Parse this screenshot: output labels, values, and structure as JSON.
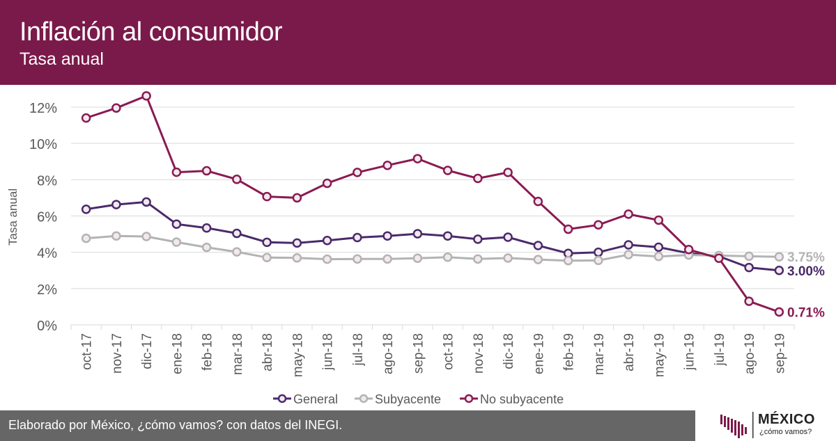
{
  "header": {
    "title": "Inflación al consumidor",
    "subtitle": "Tasa anual"
  },
  "footer": {
    "credit": "Elaborado por México, ¿cómo vamos? con datos del INEGI."
  },
  "logo": {
    "name": "MÉXICO",
    "tagline": "¿cómo vamos?"
  },
  "colors": {
    "header_bg": "#7a1a4a",
    "footer_bg": "#666666",
    "grid": "#d9d9d9",
    "axis_text": "#595959"
  },
  "chart_data": {
    "type": "line",
    "ylabel": "Tasa anual",
    "xlabel": "",
    "ylim": [
      0,
      12
    ],
    "yticks": [
      "0%",
      "2%",
      "4%",
      "6%",
      "8%",
      "10%",
      "12%"
    ],
    "grid": true,
    "legend_position": "bottom",
    "categories": [
      "oct-17",
      "nov-17",
      "dic-17",
      "ene-18",
      "feb-18",
      "mar-18",
      "abr-18",
      "may-18",
      "jun-18",
      "jul-18",
      "ago-18",
      "sep-18",
      "oct-18",
      "nov-18",
      "dic-18",
      "ene-19",
      "feb-19",
      "mar-19",
      "abr-19",
      "may-19",
      "jun-19",
      "jul-19",
      "ago-19",
      "sep-19"
    ],
    "series": [
      {
        "name": "General",
        "color": "#4a2a6a",
        "end_label": "3.00%",
        "values": [
          6.37,
          6.63,
          6.77,
          5.55,
          5.34,
          5.04,
          4.55,
          4.51,
          4.65,
          4.81,
          4.9,
          5.02,
          4.9,
          4.72,
          4.83,
          4.37,
          3.94,
          4.0,
          4.41,
          4.28,
          3.95,
          3.78,
          3.16,
          3.0
        ]
      },
      {
        "name": "Subyacente",
        "color": "#b3b3b3",
        "end_label": "3.75%",
        "values": [
          4.77,
          4.9,
          4.87,
          4.56,
          4.27,
          4.02,
          3.71,
          3.69,
          3.62,
          3.63,
          3.63,
          3.67,
          3.73,
          3.63,
          3.68,
          3.6,
          3.54,
          3.55,
          3.87,
          3.77,
          3.85,
          3.82,
          3.78,
          3.75
        ]
      },
      {
        "name": "No subyacente",
        "color": "#8a1a52",
        "end_label": "0.71%",
        "values": [
          11.4,
          11.95,
          12.62,
          8.41,
          8.49,
          8.02,
          7.07,
          7.0,
          7.8,
          8.4,
          8.79,
          9.16,
          8.51,
          8.07,
          8.4,
          6.8,
          5.27,
          5.51,
          6.1,
          5.77,
          4.15,
          3.67,
          1.3,
          0.71
        ]
      }
    ]
  }
}
